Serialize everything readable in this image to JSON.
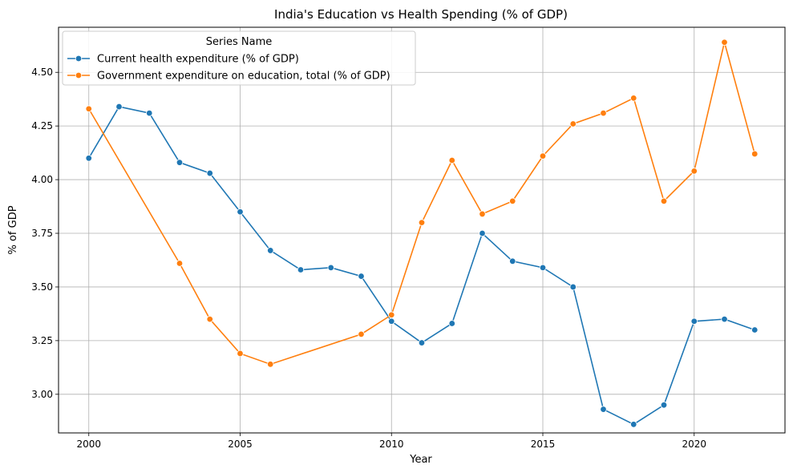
{
  "chart_data": {
    "type": "line",
    "title": "India's Education vs Health Spending (% of GDP)",
    "xlabel": "Year",
    "ylabel": "% of GDP",
    "xlim": [
      1999,
      2023
    ],
    "ylim": [
      2.82,
      4.71
    ],
    "xticks": [
      2000,
      2005,
      2010,
      2015,
      2020
    ],
    "yticks": [
      3.0,
      3.25,
      3.5,
      3.75,
      4.0,
      4.25,
      4.5
    ],
    "grid": true,
    "legend": {
      "title": "Series Name",
      "placement": "top-left"
    },
    "series": [
      {
        "name": "Current health expenditure (% of GDP)",
        "color": "#1f77b4",
        "x": [
          2000,
          2001,
          2002,
          2003,
          2004,
          2005,
          2006,
          2007,
          2008,
          2009,
          2010,
          2011,
          2012,
          2013,
          2014,
          2015,
          2016,
          2017,
          2018,
          2019,
          2020,
          2021,
          2022
        ],
        "y": [
          4.1,
          4.34,
          4.31,
          4.08,
          4.03,
          3.85,
          3.67,
          3.58,
          3.59,
          3.55,
          3.34,
          3.24,
          3.33,
          3.75,
          3.62,
          3.59,
          3.5,
          2.93,
          2.86,
          2.95,
          3.34,
          3.35,
          3.3
        ]
      },
      {
        "name": "Government expenditure on education, total (% of GDP)",
        "color": "#ff7f0e",
        "x": [
          2000,
          2003,
          2004,
          2005,
          2006,
          2009,
          2010,
          2011,
          2012,
          2013,
          2014,
          2015,
          2016,
          2017,
          2018,
          2019,
          2020,
          2021,
          2022
        ],
        "y": [
          4.33,
          3.61,
          3.35,
          3.19,
          3.14,
          3.28,
          3.37,
          3.8,
          4.09,
          3.84,
          3.9,
          4.11,
          4.26,
          4.31,
          4.38,
          3.9,
          4.04,
          4.64,
          4.12
        ]
      }
    ]
  }
}
